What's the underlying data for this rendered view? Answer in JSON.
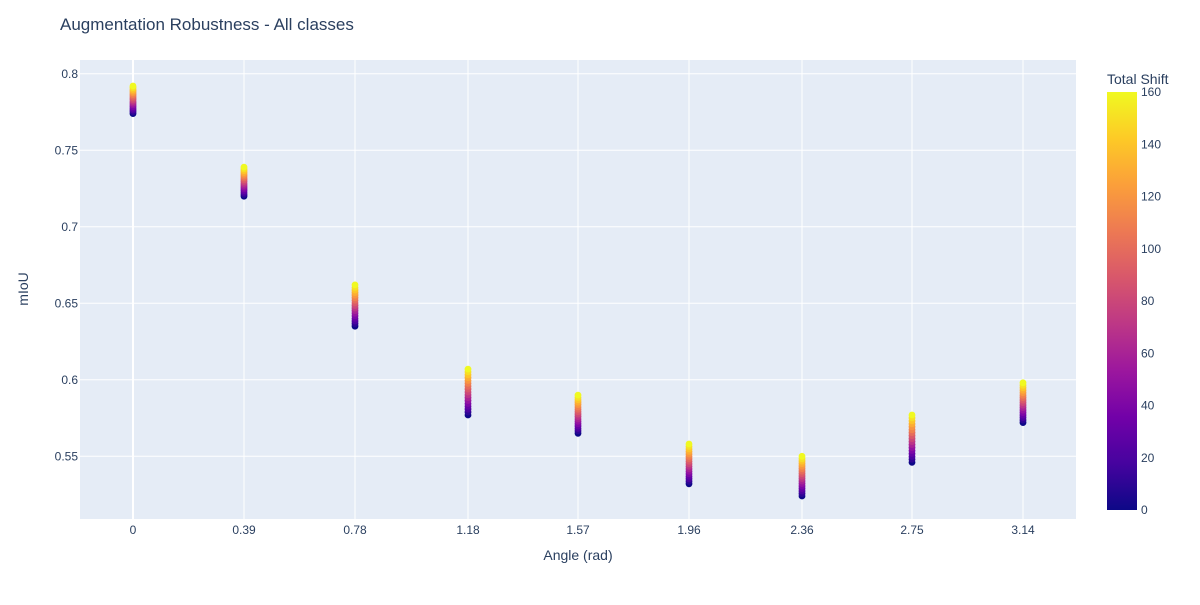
{
  "chart_data": {
    "type": "scatter",
    "title": "Augmentation Robustness - All classes",
    "xlabel": "Angle (rad)",
    "ylabel": "mIoU",
    "x_ticks": [
      "0",
      "0.39",
      "0.78",
      "1.18",
      "1.57",
      "1.96",
      "2.36",
      "2.75",
      "3.14"
    ],
    "y_ticks": [
      "0.8",
      "0.75",
      "0.7",
      "0.65",
      "0.6",
      "0.55"
    ],
    "ylim": [
      0.509,
      0.809
    ],
    "grid": true,
    "colorbar": {
      "title": "Total Shift",
      "range": [
        0,
        160
      ],
      "ticks": [
        "160",
        "140",
        "120",
        "100",
        "80",
        "60",
        "40",
        "20",
        "0"
      ],
      "colorscale": [
        "#0d0887",
        "#46039f",
        "#7201a8",
        "#9c179e",
        "#bd3786",
        "#d8576b",
        "#ed7953",
        "#fb9f3a",
        "#fdca26",
        "#f0f921"
      ]
    },
    "groups": [
      {
        "x": 0,
        "min": 0.774,
        "max": 0.792
      },
      {
        "x": 0.39,
        "min": 0.72,
        "max": 0.739
      },
      {
        "x": 0.78,
        "min": 0.635,
        "max": 0.662
      },
      {
        "x": 1.18,
        "min": 0.577,
        "max": 0.607
      },
      {
        "x": 1.57,
        "min": 0.565,
        "max": 0.59
      },
      {
        "x": 1.96,
        "min": 0.532,
        "max": 0.558
      },
      {
        "x": 2.36,
        "min": 0.524,
        "max": 0.55
      },
      {
        "x": 2.75,
        "min": 0.546,
        "max": 0.577
      },
      {
        "x": 3.14,
        "min": 0.572,
        "max": 0.598
      }
    ],
    "shift_levels": [
      0,
      10,
      20,
      30,
      40,
      50,
      60,
      70,
      80,
      90,
      100,
      110,
      120,
      130,
      140,
      150,
      160
    ]
  }
}
